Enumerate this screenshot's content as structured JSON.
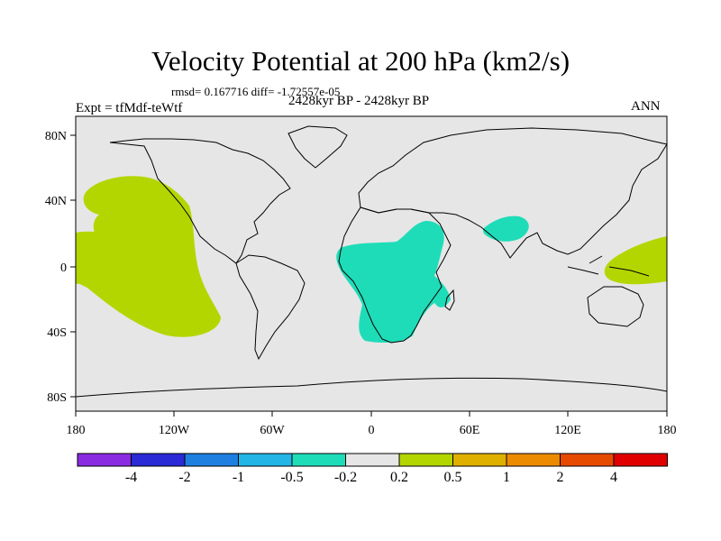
{
  "title": "Velocity Potential at 200 hPa (km2/s)",
  "stats_line": "rmsd= 0.167716 diff= -1.72557e-05",
  "experiment": "Expt = tfMdf-teWtf",
  "period": "2428kyr BP - 2428kyr BP",
  "season": "ANN",
  "colors": {
    "ocean_background": "#e6e6e6",
    "positive_fill": "#b4d600",
    "negative_fill": "#1fdcb8",
    "coastline": "#000000"
  },
  "axes": {
    "lon_labels": [
      "180",
      "120W",
      "60W",
      "0",
      "60E",
      "120E",
      "180"
    ],
    "lat_labels": [
      "80N",
      "40N",
      "0",
      "40S",
      "80S"
    ]
  },
  "colorbar": {
    "colors": [
      "#8a2be2",
      "#2a2ad6",
      "#1e7fe0",
      "#22b5e6",
      "#1fdcb8",
      "#e6e6e6",
      "#b4d600",
      "#e0b000",
      "#ec8a00",
      "#e64a00",
      "#e00000"
    ],
    "labels": [
      "-4",
      "-2",
      "-1",
      "-0.5",
      "-0.2",
      "0.2",
      "0.5",
      "1",
      "2",
      "4"
    ]
  }
}
